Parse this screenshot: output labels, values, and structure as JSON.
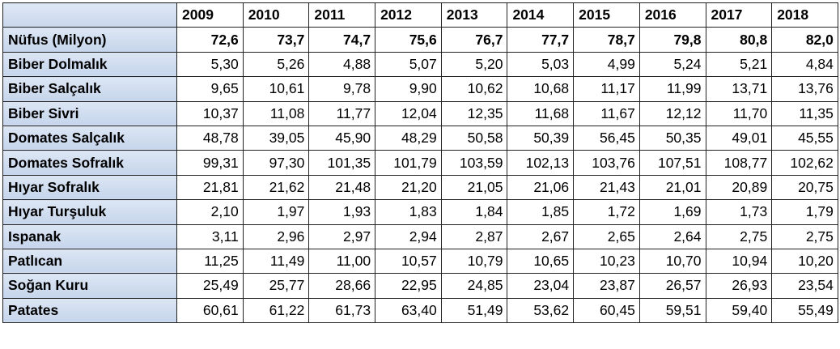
{
  "chart_data": {
    "type": "table",
    "columns": [
      "2009",
      "2010",
      "2011",
      "2012",
      "2013",
      "2014",
      "2015",
      "2016",
      "2017",
      "2018"
    ],
    "rows": [
      {
        "label": "Nüfus (Milyon)",
        "bold": true,
        "values": [
          "72,6",
          "73,7",
          "74,7",
          "75,6",
          "76,7",
          "77,7",
          "78,7",
          "79,8",
          "80,8",
          "82,0"
        ]
      },
      {
        "label": "Biber Dolmalık",
        "values": [
          "5,30",
          "5,26",
          "4,88",
          "5,07",
          "5,20",
          "5,03",
          "4,99",
          "5,24",
          "5,21",
          "4,84"
        ]
      },
      {
        "label": "Biber Salçalık",
        "values": [
          "9,65",
          "10,61",
          "9,78",
          "9,90",
          "10,62",
          "10,68",
          "11,17",
          "11,99",
          "13,71",
          "13,76"
        ]
      },
      {
        "label": "Biber Sivri",
        "values": [
          "10,37",
          "11,08",
          "11,77",
          "12,04",
          "12,35",
          "11,68",
          "11,67",
          "12,12",
          "11,70",
          "11,35"
        ]
      },
      {
        "label": "Domates Salçalık",
        "values": [
          "48,78",
          "39,05",
          "45,90",
          "48,29",
          "50,58",
          "50,39",
          "56,45",
          "50,35",
          "49,01",
          "45,55"
        ]
      },
      {
        "label": "Domates Sofralık",
        "values": [
          "99,31",
          "97,30",
          "101,35",
          "101,79",
          "103,59",
          "102,13",
          "103,76",
          "107,51",
          "108,77",
          "102,62"
        ]
      },
      {
        "label": "Hıyar Sofralık",
        "values": [
          "21,81",
          "21,62",
          "21,48",
          "21,20",
          "21,05",
          "21,06",
          "21,43",
          "21,01",
          "20,89",
          "20,75"
        ]
      },
      {
        "label": "Hıyar Turşuluk",
        "values": [
          "2,10",
          "1,97",
          "1,93",
          "1,83",
          "1,84",
          "1,85",
          "1,72",
          "1,69",
          "1,73",
          "1,79"
        ]
      },
      {
        "label": "Ispanak",
        "values": [
          "3,11",
          "2,96",
          "2,97",
          "2,94",
          "2,87",
          "2,67",
          "2,65",
          "2,64",
          "2,75",
          "2,75"
        ]
      },
      {
        "label": "Patlıcan",
        "values": [
          "11,25",
          "11,49",
          "11,00",
          "10,57",
          "10,79",
          "10,65",
          "10,23",
          "10,70",
          "10,94",
          "10,20"
        ]
      },
      {
        "label": "Soğan Kuru",
        "values": [
          "25,49",
          "25,77",
          "28,66",
          "22,95",
          "24,85",
          "23,04",
          "23,87",
          "26,57",
          "26,93",
          "23,54"
        ]
      },
      {
        "label": "Patates",
        "values": [
          "60,61",
          "61,22",
          "61,73",
          "63,40",
          "51,49",
          "53,62",
          "60,45",
          "59,51",
          "59,40",
          "55,49"
        ]
      }
    ]
  },
  "colors": {
    "label_fill": "#c9d7ec",
    "border": "#222222"
  }
}
